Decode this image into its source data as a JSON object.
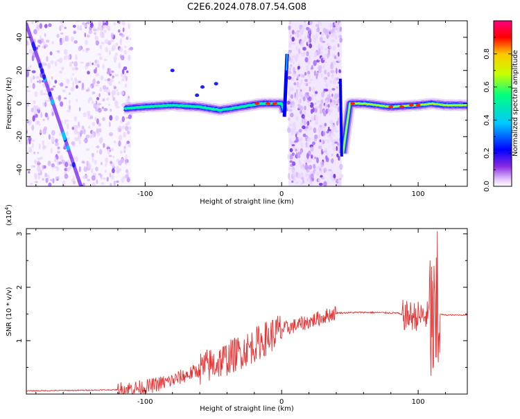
{
  "page": {
    "title": "C2E6.2024.078.07.54.G08"
  },
  "chart_data": [
    {
      "type": "heatmap",
      "title": "C2E6.2024.078.07.54.G08",
      "xlabel": "Height of straight line (km)",
      "ylabel": "Frequency (Hz)",
      "xlim": [
        -187,
        136
      ],
      "ylim": [
        -50,
        50
      ],
      "x_ticks": [
        -100,
        0,
        100
      ],
      "y_ticks": [
        -40,
        -20,
        0,
        20,
        40
      ],
      "grid": false,
      "colorbar": {
        "label": "Normalized spectral amplitude",
        "range": [
          0,
          1
        ],
        "ticks": [
          0.0,
          0.2,
          0.4,
          0.6,
          0.8
        ],
        "colormap": [
          "#ffffff",
          "#e6c8ff",
          "#8a2be2",
          "#0000ff",
          "#00c8ff",
          "#00ff80",
          "#c8ff00",
          "#ffc800",
          "#ff0000",
          "#ff0080"
        ]
      },
      "features": {
        "noise_regions_x": [
          [
            -187,
            -110
          ],
          [
            5,
            44
          ]
        ],
        "diagonal_trace": {
          "x": [
            -187,
            -147
          ],
          "y": [
            48,
            -50
          ]
        },
        "carrier_trace": {
          "x": [
            -115,
            -100,
            -80,
            -60,
            -45,
            -30,
            -15,
            -5,
            0,
            2,
            4,
            45,
            50,
            60,
            80,
            100,
            110,
            120,
            136
          ],
          "y": [
            -3,
            -2,
            -1,
            -2,
            -4,
            -2,
            0,
            0,
            0,
            -5,
            28,
            -30,
            0,
            0,
            -2,
            -1,
            0,
            -1,
            -1
          ]
        }
      }
    },
    {
      "type": "line",
      "xlabel": "Height of straight line (km)",
      "ylabel": "SNR (10 * v/v)",
      "y_multiplier": "(x10^4)",
      "xlim": [
        -187,
        136
      ],
      "ylim": [
        0,
        3.1
      ],
      "x_ticks": [
        -100,
        0,
        100
      ],
      "y_ticks": [
        1,
        2,
        3
      ],
      "grid": false,
      "color": "#e83030",
      "envelope": {
        "x": [
          -187,
          -150,
          -120,
          -100,
          -80,
          -60,
          -40,
          -20,
          0,
          20,
          40,
          60,
          85,
          90,
          100,
          108,
          110,
          113,
          115,
          120,
          136
        ],
        "y": [
          0.06,
          0.07,
          0.08,
          0.12,
          0.25,
          0.45,
          0.65,
          0.9,
          1.2,
          1.35,
          1.52,
          1.53,
          1.52,
          1.45,
          1.45,
          1.45,
          1.3,
          1.0,
          1.5,
          1.48,
          1.48
        ]
      },
      "fluctuation_amplitude": [
        {
          "x": [
            -187,
            -120
          ],
          "amp": 0.02
        },
        {
          "x": [
            -120,
            -60
          ],
          "amp": 0.15
        },
        {
          "x": [
            -60,
            0
          ],
          "amp": 0.35
        },
        {
          "x": [
            0,
            40
          ],
          "amp": 0.15
        },
        {
          "x": [
            40,
            88
          ],
          "amp": 0.03
        },
        {
          "x": [
            88,
            108
          ],
          "amp": 0.3
        },
        {
          "x": [
            108,
            116
          ],
          "amp": 1.5
        },
        {
          "x": [
            116,
            136
          ],
          "amp": 0.02
        }
      ],
      "peak": {
        "x": 114,
        "y": 3.05
      }
    }
  ]
}
